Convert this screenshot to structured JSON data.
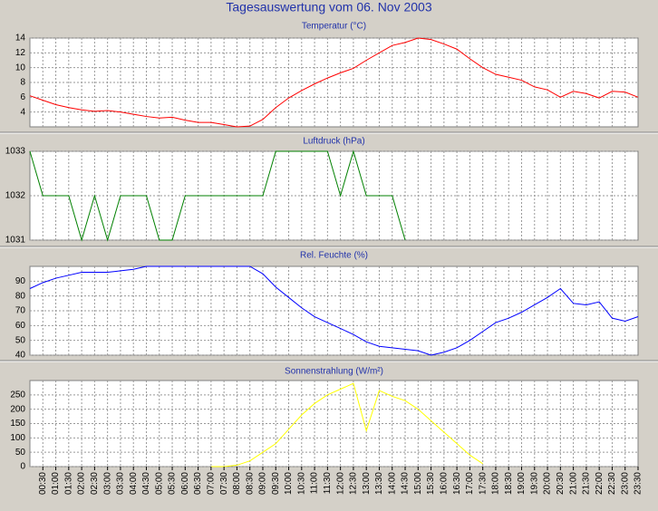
{
  "title": "Tagesauswertung vom 06. Nov 2003",
  "chart_data": [
    {
      "type": "line",
      "title": "Temperatur (°C)",
      "color": "#ff0000",
      "ylim": [
        2,
        14
      ],
      "yticks": [
        4,
        6,
        8,
        10,
        12,
        14
      ],
      "grid": true,
      "values": [
        6.2,
        5.6,
        5.0,
        4.6,
        4.3,
        4.1,
        4.2,
        4.0,
        3.7,
        3.4,
        3.2,
        3.3,
        2.9,
        2.6,
        2.6,
        2.3,
        2.0,
        2.1,
        3.0,
        4.6,
        5.9,
        6.9,
        7.8,
        8.6,
        9.3,
        9.9,
        11.0,
        12.0,
        13.0,
        13.4,
        14.0,
        13.8,
        13.2,
        12.5,
        11.2,
        10.0,
        9.1,
        8.7,
        8.3,
        7.4,
        7.0,
        6.0,
        6.8,
        6.5,
        5.9,
        6.8,
        6.7,
        6.0
      ]
    },
    {
      "type": "line",
      "title": "Luftdruck (hPa)",
      "color": "#008000",
      "ylim": [
        1031,
        1033
      ],
      "yticks": [
        1031,
        1032,
        1033
      ],
      "grid": true,
      "values": [
        1033,
        1032,
        1032,
        1032,
        1031,
        1032,
        1031,
        1032,
        1032,
        1032,
        1031,
        1031,
        1032,
        1032,
        1032,
        1032,
        1032,
        1032,
        1032,
        1033,
        1033,
        1033,
        1033,
        1033,
        1032,
        1033,
        1032,
        1032,
        1032,
        1031,
        null,
        null,
        null,
        null,
        null,
        null,
        null,
        null,
        null,
        null,
        null,
        null,
        null,
        null,
        null,
        null,
        null,
        null
      ]
    },
    {
      "type": "line",
      "title": "Rel. Feuchte (%)",
      "color": "#0000ff",
      "ylim": [
        40,
        100
      ],
      "yticks": [
        40,
        50,
        60,
        70,
        80,
        90
      ],
      "grid": true,
      "values": [
        85,
        89,
        92,
        94,
        96,
        96,
        96,
        97,
        98,
        100,
        100,
        100,
        100,
        100,
        100,
        100,
        100,
        100,
        95,
        86,
        79,
        72,
        66,
        62,
        58,
        54,
        49,
        46,
        45,
        44,
        43,
        40,
        42,
        45,
        50,
        56,
        62,
        65,
        69,
        74,
        79,
        85,
        75,
        74,
        76,
        65,
        63,
        66
      ]
    },
    {
      "type": "line",
      "title": "Sonnenstrahlung (W/m²)",
      "color": "#ffff00",
      "ylim": [
        0,
        300
      ],
      "yticks": [
        0,
        50,
        100,
        150,
        200,
        250
      ],
      "grid": true,
      "categories": [
        null,
        "00:30",
        "01:00",
        "01:30",
        "02:00",
        "02:30",
        "03:00",
        "03:30",
        "04:00",
        "04:30",
        "05:00",
        "05:30",
        "06:00",
        "06:30",
        "07:00",
        "07:30",
        "08:00",
        "08:30",
        "09:00",
        "09:30",
        "10:00",
        "10:30",
        "11:00",
        "11:30",
        "12:00",
        "12:30",
        "13:00",
        "13:30",
        "14:00",
        "14:30",
        "15:00",
        "15:30",
        "16:00",
        "16:30",
        "17:00",
        "17:30",
        "18:00",
        "18:30",
        "19:00",
        "19:30",
        "20:00",
        "20:30",
        "21:00",
        "21:30",
        "22:00",
        "22:30",
        "23:00",
        "23:30"
      ],
      "values": [
        null,
        null,
        null,
        null,
        null,
        null,
        null,
        null,
        null,
        null,
        null,
        null,
        null,
        null,
        0,
        0,
        5,
        20,
        50,
        80,
        130,
        180,
        220,
        250,
        270,
        290,
        125,
        265,
        245,
        230,
        200,
        160,
        120,
        80,
        40,
        10,
        null,
        null,
        null,
        null,
        null,
        null,
        null,
        null,
        null,
        null,
        null,
        null
      ]
    }
  ]
}
